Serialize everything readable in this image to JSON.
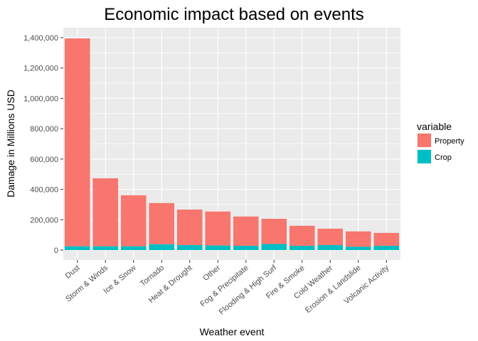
{
  "chart_data": {
    "type": "bar",
    "stacked": true,
    "title": "Economic impact based on events",
    "xlabel": "Weather event",
    "ylabel": "Damage in Millions USD",
    "ylim": [
      0,
      1450000
    ],
    "yticks": [
      0,
      200000,
      400000,
      600000,
      800000,
      1000000,
      1200000,
      1400000
    ],
    "ytick_labels": [
      "0",
      "200,000",
      "400,000",
      "600,000",
      "800,000",
      "1,000,000",
      "1,200,000",
      "1,400,000"
    ],
    "categories": [
      "Dust",
      "Storm & Winds",
      "Ice & Snow",
      "Tornado",
      "Heat & Drought",
      "Other",
      "Fog & Precipitate",
      "Flooding & High Surf",
      "Fire & Smoke",
      "Cold Weather",
      "Erosion & Landslide",
      "Volcanic Activity"
    ],
    "series": [
      {
        "name": "Property",
        "values": [
          1370000,
          448000,
          336000,
          272000,
          234000,
          224000,
          193000,
          166000,
          132000,
          108000,
          101000,
          85000
        ],
        "color": "#F8766D"
      },
      {
        "name": "Crop",
        "values": [
          25000,
          25000,
          25000,
          38000,
          33000,
          30000,
          28000,
          40000,
          28000,
          33000,
          22000,
          28000
        ],
        "color": "#00BFC4"
      }
    ],
    "legend": {
      "title": "variable",
      "position": "right"
    },
    "grid": true,
    "panel_background": "#EBEBEB",
    "grid_color": "#ffffff"
  }
}
